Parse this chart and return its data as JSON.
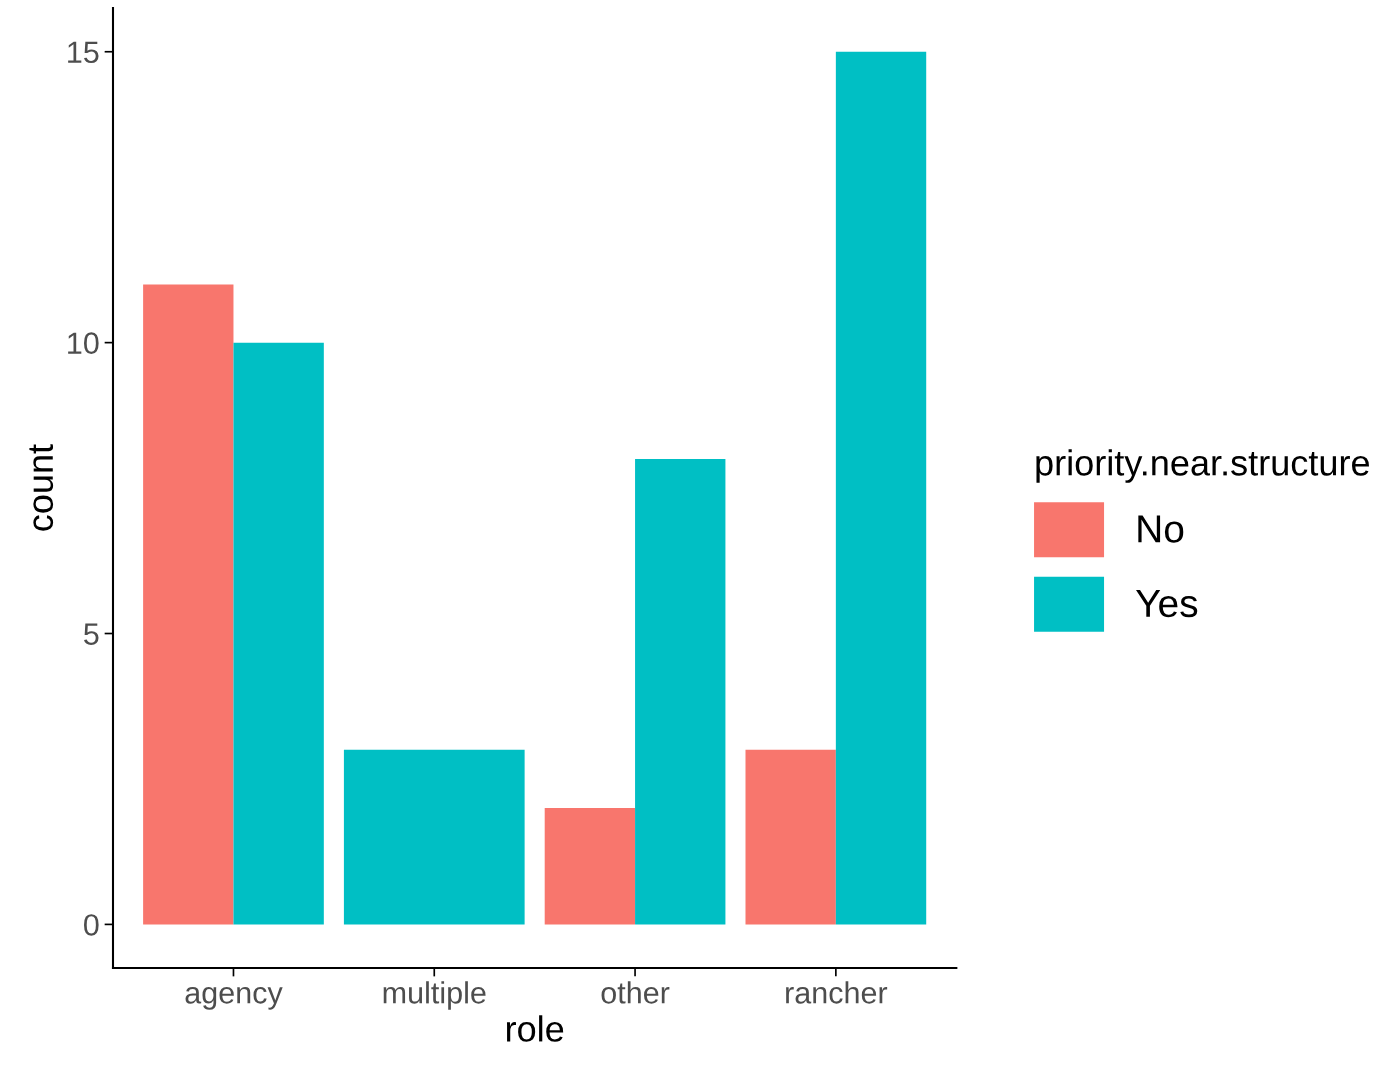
{
  "chart_data": {
    "type": "bar",
    "xlabel": "role",
    "ylabel": "count",
    "legend_title": "priority.near.structure",
    "categories": [
      "agency",
      "multiple",
      "other",
      "rancher"
    ],
    "series": [
      {
        "name": "No",
        "color": "#f8766d",
        "values": [
          11,
          null,
          2,
          3
        ]
      },
      {
        "name": "Yes",
        "color": "#00bfc4",
        "values": [
          10,
          3,
          8,
          15
        ]
      }
    ],
    "ylim": [
      -0.75,
      15.75
    ],
    "yticks": [
      0,
      5,
      10,
      15
    ],
    "grid": false,
    "legend": "right"
  }
}
